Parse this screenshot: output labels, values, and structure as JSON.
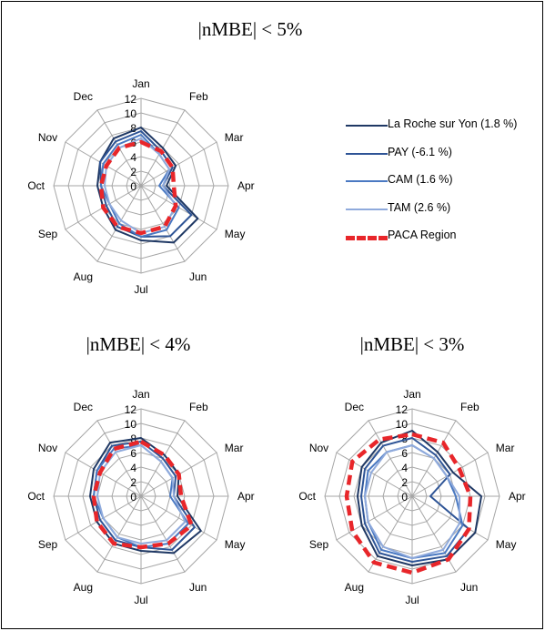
{
  "colors": {
    "grid": "#a6a6a6",
    "paca": "#e8262a"
  },
  "legend": [
    {
      "label": "La Roche sur Yon (1.8 %)",
      "color": "#1f3864",
      "width": 2,
      "dash": "solid"
    },
    {
      "label": "PAY (-6.1 %)",
      "color": "#2e5496",
      "width": 2,
      "dash": "solid"
    },
    {
      "label": "CAM (1.6 %)",
      "color": "#4a79c2",
      "width": 2,
      "dash": "solid"
    },
    {
      "label": "TAM (2.6 %)",
      "color": "#8faadc",
      "width": 2,
      "dash": "solid"
    },
    {
      "label": "PACA Region",
      "color": "#e8262a",
      "width": 5,
      "dash": "dashed"
    }
  ],
  "chart_data": [
    {
      "type": "radar",
      "title": "|nMBE| < 5%",
      "categories": [
        "Jan",
        "Feb",
        "Mar",
        "Apr",
        "May",
        "Jun",
        "Jul",
        "Aug",
        "Sep",
        "Oct",
        "Nov",
        "Dec"
      ],
      "r_ticks": [
        "0",
        "2",
        "4",
        "6",
        "8",
        "10",
        "12"
      ],
      "rlim": [
        0,
        12
      ],
      "series": [
        {
          "name": "La Roche sur Yon (1.8 %)",
          "values": [
            8.0,
            6.0,
            5.5,
            3.5,
            9.0,
            9.0,
            7.5,
            7.0,
            6.0,
            6.0,
            6.5,
            7.5
          ]
        },
        {
          "name": "PAY (-6.1 %)",
          "values": [
            7.5,
            5.5,
            5.0,
            3.0,
            8.0,
            8.0,
            7.0,
            6.5,
            5.5,
            5.5,
            6.5,
            7.0
          ]
        },
        {
          "name": "CAM (1.6 %)",
          "values": [
            7.0,
            5.0,
            4.5,
            2.5,
            6.0,
            7.0,
            7.0,
            6.0,
            5.0,
            5.5,
            6.0,
            6.5
          ]
        },
        {
          "name": "TAM (2.6 %)",
          "values": [
            6.5,
            5.0,
            4.5,
            3.0,
            5.5,
            6.5,
            6.5,
            5.5,
            5.0,
            5.0,
            5.5,
            6.0
          ]
        },
        {
          "name": "PACA Region",
          "values": [
            6.0,
            5.5,
            5.0,
            4.5,
            5.5,
            6.5,
            6.5,
            6.5,
            6.0,
            5.5,
            5.5,
            6.0
          ]
        }
      ]
    },
    {
      "type": "radar",
      "title": "|nMBE| < 4%",
      "categories": [
        "Jan",
        "Feb",
        "Mar",
        "Apr",
        "May",
        "Jun",
        "Jul",
        "Aug",
        "Sep",
        "Oct",
        "Nov",
        "Dec"
      ],
      "r_ticks": [
        "0",
        "2",
        "4",
        "6",
        "8",
        "10",
        "12"
      ],
      "rlim": [
        0,
        12
      ],
      "series": [
        {
          "name": "La Roche sur Yon (1.8 %)",
          "values": [
            8.0,
            6.5,
            6.0,
            5.0,
            9.5,
            9.0,
            7.5,
            7.5,
            7.0,
            7.0,
            7.5,
            8.5
          ]
        },
        {
          "name": "PAY (-6.1 %)",
          "values": [
            7.5,
            6.0,
            5.5,
            4.5,
            8.5,
            8.5,
            7.0,
            7.0,
            6.5,
            6.5,
            7.0,
            8.0
          ]
        },
        {
          "name": "CAM (1.6 %)",
          "values": [
            7.0,
            5.5,
            5.0,
            4.0,
            7.5,
            7.5,
            7.0,
            6.5,
            6.0,
            6.5,
            7.0,
            7.5
          ]
        },
        {
          "name": "TAM (2.6 %)",
          "values": [
            7.0,
            5.5,
            5.0,
            4.5,
            7.0,
            7.0,
            6.5,
            6.5,
            6.0,
            6.0,
            6.5,
            7.0
          ]
        },
        {
          "name": "PACA Region",
          "values": [
            7.5,
            6.5,
            6.0,
            5.5,
            8.0,
            7.5,
            7.0,
            7.5,
            7.0,
            6.5,
            6.5,
            7.5
          ]
        }
      ]
    },
    {
      "type": "radar",
      "title": "|nMBE| < 3%",
      "categories": [
        "Jan",
        "Feb",
        "Mar",
        "Apr",
        "May",
        "Jun",
        "Jul",
        "Aug",
        "Sep",
        "Oct",
        "Nov",
        "Dec"
      ],
      "r_ticks": [
        "0",
        "2",
        "4",
        "6",
        "8",
        "10",
        "12"
      ],
      "rlim": [
        0,
        12
      ],
      "series": [
        {
          "name": "La Roche sur Yon (1.8 %)",
          "values": [
            9.0,
            7.0,
            6.5,
            9.5,
            10.0,
            10.0,
            9.5,
            9.5,
            8.0,
            7.5,
            8.0,
            8.5
          ]
        },
        {
          "name": "PAY (-6.1 %)",
          "values": [
            8.0,
            6.5,
            6.0,
            2.5,
            9.0,
            9.5,
            9.0,
            9.0,
            7.5,
            7.0,
            7.5,
            8.0
          ]
        },
        {
          "name": "CAM (1.6 %)",
          "values": [
            7.0,
            6.0,
            5.5,
            6.0,
            8.0,
            9.0,
            8.5,
            8.5,
            7.0,
            6.5,
            7.0,
            7.0
          ]
        },
        {
          "name": "TAM (2.6 %)",
          "values": [
            7.0,
            6.0,
            5.5,
            6.5,
            7.5,
            8.5,
            8.5,
            8.0,
            7.0,
            6.5,
            6.5,
            7.0
          ]
        },
        {
          "name": "PACA Region",
          "values": [
            8.5,
            8.5,
            7.5,
            8.0,
            9.0,
            10.0,
            10.5,
            10.5,
            9.5,
            9.0,
            9.5,
            9.0
          ]
        }
      ]
    }
  ]
}
